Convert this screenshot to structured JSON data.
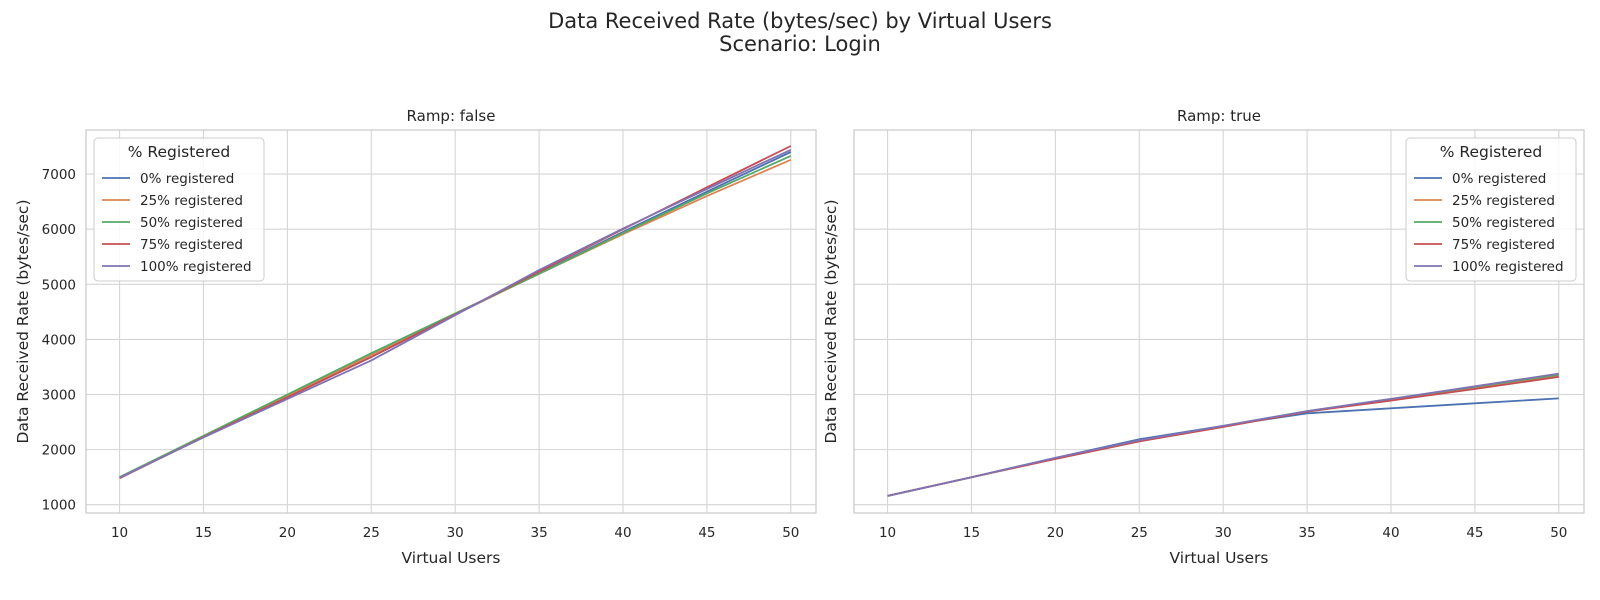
{
  "figure": {
    "title_line1": "Data Received Rate (bytes/sec) by Virtual Users",
    "title_line2": "Scenario: Login"
  },
  "chart_data": [
    {
      "type": "line",
      "title": "Ramp: false",
      "xlabel": "Virtual Users",
      "ylabel": "Data Received Rate (bytes/sec)",
      "x": [
        10,
        15,
        20,
        25,
        30,
        35,
        40,
        45,
        50
      ],
      "xlim": [
        8,
        51.5
      ],
      "ylim": [
        850,
        7800
      ],
      "xticks": [
        10,
        15,
        20,
        25,
        30,
        35,
        40,
        45,
        50
      ],
      "yticks": [
        1000,
        2000,
        3000,
        4000,
        5000,
        6000,
        7000
      ],
      "grid": true,
      "legend": {
        "title": "% Registered",
        "placement": "upper left"
      },
      "series": [
        {
          "name": "0% registered",
          "color": "#4c72b0",
          "values": [
            1500,
            2240,
            2960,
            3680,
            4450,
            5200,
            5950,
            6680,
            7400
          ]
        },
        {
          "name": "25% registered",
          "color": "#dd8452",
          "values": [
            1490,
            2240,
            2980,
            3720,
            4460,
            5190,
            5910,
            6600,
            7260
          ]
        },
        {
          "name": "50% registered",
          "color": "#55a868",
          "values": [
            1500,
            2250,
            3000,
            3750,
            4470,
            5190,
            5930,
            6650,
            7330
          ]
        },
        {
          "name": "75% registered",
          "color": "#c44e52",
          "values": [
            1480,
            2230,
            2950,
            3680,
            4450,
            5230,
            6000,
            6760,
            7510
          ]
        },
        {
          "name": "100% registered",
          "color": "#8172b3",
          "values": [
            1490,
            2220,
            2920,
            3620,
            4440,
            5260,
            6010,
            6730,
            7440
          ]
        }
      ]
    },
    {
      "type": "line",
      "title": "Ramp: true",
      "xlabel": "Virtual Users",
      "ylabel": "Data Received Rate (bytes/sec)",
      "x": [
        10,
        15,
        20,
        25,
        30,
        35,
        40,
        45,
        50
      ],
      "xlim": [
        8,
        51.5
      ],
      "ylim": [
        850,
        7800
      ],
      "xticks": [
        10,
        15,
        20,
        25,
        30,
        35,
        40,
        45,
        50
      ],
      "yticks": [
        1000,
        2000,
        3000,
        4000,
        5000,
        6000,
        7000
      ],
      "grid": true,
      "legend": {
        "title": "% Registered",
        "placement": "upper right"
      },
      "series": [
        {
          "name": "0% registered",
          "color": "#4c72b0",
          "values": [
            1160,
            1500,
            1850,
            2190,
            2430,
            2660,
            2750,
            2840,
            2930
          ]
        },
        {
          "name": "25% registered",
          "color": "#dd8452",
          "values": [
            1160,
            1500,
            1840,
            2150,
            2420,
            2690,
            2900,
            3120,
            3340
          ]
        },
        {
          "name": "50% registered",
          "color": "#55a868",
          "values": [
            1160,
            1500,
            1840,
            2160,
            2430,
            2700,
            2920,
            3140,
            3360
          ]
        },
        {
          "name": "75% registered",
          "color": "#c44e52",
          "values": [
            1160,
            1500,
            1830,
            2150,
            2410,
            2690,
            2890,
            3100,
            3320
          ]
        },
        {
          "name": "100% registered",
          "color": "#8172b3",
          "values": [
            1160,
            1500,
            1850,
            2170,
            2430,
            2700,
            2920,
            3150,
            3380
          ]
        }
      ]
    }
  ]
}
